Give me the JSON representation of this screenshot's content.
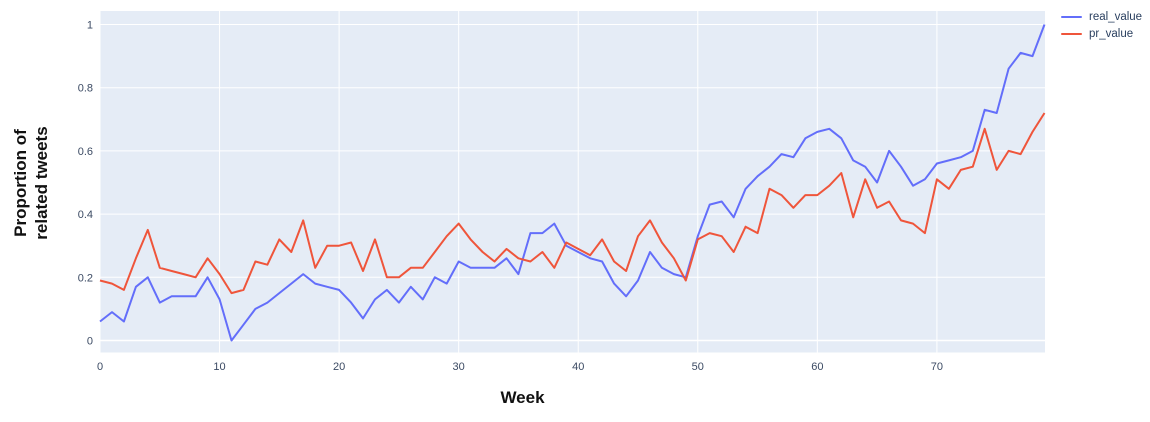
{
  "figure": {
    "x_axis": {
      "title": "Week",
      "tick_labels": [
        "0",
        "10",
        "20",
        "30",
        "40",
        "50",
        "60",
        "70"
      ]
    },
    "y_axis": {
      "title_line1": "Proportion of",
      "title_line2": "related tweets",
      "tick_labels": [
        "0",
        "0.2",
        "0.4",
        "0.6",
        "0.8",
        "1"
      ]
    },
    "colors": {
      "plot_background": "#E5ECF6",
      "gridline": "#ffffff",
      "tick_text": "#3b4a63",
      "axis_title_text": "#111111"
    }
  },
  "chart_data": {
    "type": "line",
    "title": "",
    "xlabel": "Week",
    "ylabel": "Proportion of related tweets",
    "xlim": [
      0,
      79
    ],
    "ylim": [
      0,
      1
    ],
    "grid": true,
    "legend_position": "top-right-outside",
    "x_ticks": [
      0,
      10,
      20,
      30,
      40,
      50,
      60,
      70
    ],
    "y_ticks": [
      0,
      0.2,
      0.4,
      0.6,
      0.8,
      1
    ],
    "x": [
      0,
      1,
      2,
      3,
      4,
      5,
      6,
      7,
      8,
      9,
      10,
      11,
      12,
      13,
      14,
      15,
      16,
      17,
      18,
      19,
      20,
      21,
      22,
      23,
      24,
      25,
      26,
      27,
      28,
      29,
      30,
      31,
      32,
      33,
      34,
      35,
      36,
      37,
      38,
      39,
      40,
      41,
      42,
      43,
      44,
      45,
      46,
      47,
      48,
      49,
      50,
      51,
      52,
      53,
      54,
      55,
      56,
      57,
      58,
      59,
      60,
      61,
      62,
      63,
      64,
      65,
      66,
      67,
      68,
      69,
      70,
      71,
      72,
      73,
      74,
      75,
      76,
      77,
      78,
      79
    ],
    "series": [
      {
        "name": "real_value",
        "color": "#636EFA",
        "values": [
          0.06,
          0.09,
          0.06,
          0.17,
          0.2,
          0.12,
          0.14,
          0.14,
          0.14,
          0.2,
          0.13,
          0.0,
          0.05,
          0.1,
          0.12,
          0.15,
          0.18,
          0.21,
          0.18,
          0.17,
          0.16,
          0.12,
          0.07,
          0.13,
          0.16,
          0.12,
          0.17,
          0.13,
          0.2,
          0.18,
          0.25,
          0.23,
          0.23,
          0.23,
          0.26,
          0.21,
          0.34,
          0.34,
          0.37,
          0.3,
          0.28,
          0.26,
          0.25,
          0.18,
          0.14,
          0.19,
          0.28,
          0.23,
          0.21,
          0.2,
          0.33,
          0.43,
          0.44,
          0.39,
          0.48,
          0.52,
          0.55,
          0.59,
          0.58,
          0.64,
          0.66,
          0.67,
          0.64,
          0.57,
          0.55,
          0.5,
          0.6,
          0.55,
          0.49,
          0.51,
          0.56,
          0.57,
          0.58,
          0.6,
          0.73,
          0.72,
          0.86,
          0.91,
          0.9,
          1.0
        ]
      },
      {
        "name": "pr_value",
        "color": "#EF553B",
        "values": [
          0.19,
          0.18,
          0.16,
          0.26,
          0.35,
          0.23,
          0.22,
          0.21,
          0.2,
          0.26,
          0.21,
          0.15,
          0.16,
          0.25,
          0.24,
          0.32,
          0.28,
          0.38,
          0.23,
          0.3,
          0.3,
          0.31,
          0.22,
          0.32,
          0.2,
          0.2,
          0.23,
          0.23,
          0.28,
          0.33,
          0.37,
          0.32,
          0.28,
          0.25,
          0.29,
          0.26,
          0.25,
          0.28,
          0.23,
          0.31,
          0.29,
          0.27,
          0.32,
          0.25,
          0.22,
          0.33,
          0.38,
          0.31,
          0.26,
          0.19,
          0.32,
          0.34,
          0.33,
          0.28,
          0.36,
          0.34,
          0.48,
          0.46,
          0.42,
          0.46,
          0.46,
          0.49,
          0.53,
          0.39,
          0.51,
          0.42,
          0.44,
          0.38,
          0.37,
          0.34,
          0.51,
          0.48,
          0.54,
          0.55,
          0.67,
          0.54,
          0.6,
          0.59,
          0.66,
          0.72
        ]
      }
    ]
  }
}
